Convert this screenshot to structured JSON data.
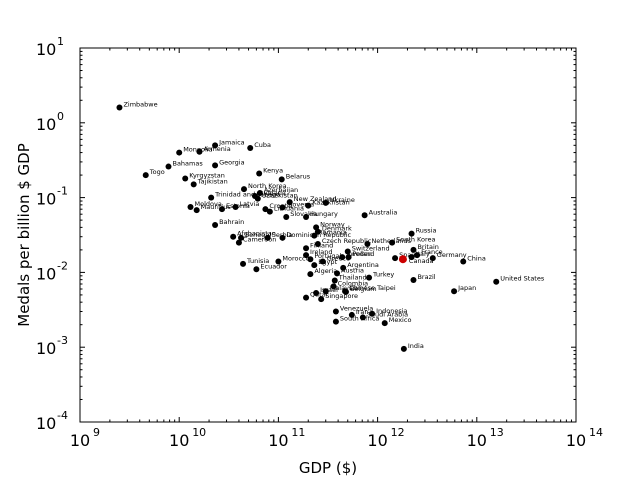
{
  "chart_data": {
    "type": "scatter",
    "title": "",
    "xlabel": "GDP ($)",
    "ylabel": "Medals per billion $ GDP",
    "xscale": "log",
    "yscale": "log",
    "xlim": [
      1000000000.0,
      100000000000000.0
    ],
    "ylim": [
      0.0001,
      10
    ],
    "grid": false,
    "x_ticks": [
      {
        "base": "10",
        "exp": "9"
      },
      {
        "base": "10",
        "exp": "10"
      },
      {
        "base": "10",
        "exp": "11"
      },
      {
        "base": "10",
        "exp": "12"
      },
      {
        "base": "10",
        "exp": "13"
      },
      {
        "base": "10",
        "exp": "14"
      }
    ],
    "y_ticks": [
      {
        "base": "10",
        "exp": "-4"
      },
      {
        "base": "10",
        "exp": "-3"
      },
      {
        "base": "10",
        "exp": "-2"
      },
      {
        "base": "10",
        "exp": "-1"
      },
      {
        "base": "10",
        "exp": "0"
      },
      {
        "base": "10",
        "exp": "1"
      }
    ],
    "point_color": "#000000",
    "highlight_color": "#cc0000",
    "highlight_label": "Canada",
    "points": [
      {
        "label": "Zimbabwe",
        "x": 2500000000.0,
        "y": 1.6
      },
      {
        "label": "Jamaica",
        "x": 23000000000.0,
        "y": 0.5
      },
      {
        "label": "Mongolia",
        "x": 10000000000.0,
        "y": 0.4
      },
      {
        "label": "Armenia",
        "x": 16000000000.0,
        "y": 0.41
      },
      {
        "label": "Cuba",
        "x": 52000000000.0,
        "y": 0.46
      },
      {
        "label": "Georgia",
        "x": 23000000000.0,
        "y": 0.27
      },
      {
        "label": "Bahamas",
        "x": 7800000000.0,
        "y": 0.26
      },
      {
        "label": "Togo",
        "x": 4600000000.0,
        "y": 0.2
      },
      {
        "label": "Kenya",
        "x": 64000000000.0,
        "y": 0.21
      },
      {
        "label": "Kyrgyzstan",
        "x": 11500000000.0,
        "y": 0.18
      },
      {
        "label": "Tajikistan",
        "x": 14000000000.0,
        "y": 0.15
      },
      {
        "label": "Belarus",
        "x": 108000000000.0,
        "y": 0.175
      },
      {
        "label": "North Korea",
        "x": 45000000000.0,
        "y": 0.13
      },
      {
        "label": "Azerbaijan",
        "x": 65000000000.0,
        "y": 0.115
      },
      {
        "label": "Bulgaria",
        "x": 58000000000.0,
        "y": 0.105
      },
      {
        "label": "Uzbekistan",
        "x": 62000000000.0,
        "y": 0.097
      },
      {
        "label": "Trinidad and Tobago",
        "x": 21000000000.0,
        "y": 0.1
      },
      {
        "label": "Ukraine",
        "x": 300000000000.0,
        "y": 0.085
      },
      {
        "label": "Kazakhstan",
        "x": 200000000000.0,
        "y": 0.078
      },
      {
        "label": "New Zealand",
        "x": 130000000000.0,
        "y": 0.087
      },
      {
        "label": "Slovenia",
        "x": 110000000000.0,
        "y": 0.074
      },
      {
        "label": "Moldova",
        "x": 13000000000.0,
        "y": 0.075
      },
      {
        "label": "Latvia",
        "x": 37000000000.0,
        "y": 0.075
      },
      {
        "label": "Croatia",
        "x": 74000000000.0,
        "y": 0.07
      },
      {
        "label": "Estonia",
        "x": 27000000000.0,
        "y": 0.07
      },
      {
        "label": "Mauritius",
        "x": 15000000000.0,
        "y": 0.068
      },
      {
        "label": "Lithuania",
        "x": 82000000000.0,
        "y": 0.065
      },
      {
        "label": "Slovakia",
        "x": 120000000000.0,
        "y": 0.055
      },
      {
        "label": "Hungary",
        "x": 190000000000.0,
        "y": 0.055
      },
      {
        "label": "Australia",
        "x": 740000000000.0,
        "y": 0.058
      },
      {
        "label": "Bahrain",
        "x": 23000000000.0,
        "y": 0.043
      },
      {
        "label": "Norway",
        "x": 240000000000.0,
        "y": 0.04
      },
      {
        "label": "Denmark",
        "x": 250000000000.0,
        "y": 0.035
      },
      {
        "label": "Romania",
        "x": 230000000000.0,
        "y": 0.031
      },
      {
        "label": "Dominican Republic",
        "x": 110000000000.0,
        "y": 0.029
      },
      {
        "label": "Afghanistan",
        "x": 35000000000.0,
        "y": 0.03
      },
      {
        "label": "Serbia",
        "x": 78000000000.0,
        "y": 0.029
      },
      {
        "label": "Senegal",
        "x": 42000000000.0,
        "y": 0.029
      },
      {
        "label": "Cameroon",
        "x": 40000000000.0,
        "y": 0.025
      },
      {
        "label": "Russia",
        "x": 2200000000000.0,
        "y": 0.033
      },
      {
        "label": "Czech Republic",
        "x": 250000000000.0,
        "y": 0.024
      },
      {
        "label": "Netherlands",
        "x": 790000000000.0,
        "y": 0.024
      },
      {
        "label": "South Korea",
        "x": 1400000000000.0,
        "y": 0.025
      },
      {
        "label": "Britain",
        "x": 2300000000000.0,
        "y": 0.02
      },
      {
        "label": "France",
        "x": 2500000000000.0,
        "y": 0.017
      },
      {
        "label": "Finland",
        "x": 190000000000.0,
        "y": 0.021
      },
      {
        "label": "Ireland",
        "x": 190000000000.0,
        "y": 0.017
      },
      {
        "label": "Switzerland",
        "x": 500000000000.0,
        "y": 0.019
      },
      {
        "label": "Poland",
        "x": 510000000000.0,
        "y": 0.016
      },
      {
        "label": "Sweden",
        "x": 440000000000.0,
        "y": 0.016
      },
      {
        "label": "Portugal",
        "x": 210000000000.0,
        "y": 0.015
      },
      {
        "label": "Greece",
        "x": 280000000000.0,
        "y": 0.014
      },
      {
        "label": "Morocco",
        "x": 100000000000.0,
        "y": 0.014
      },
      {
        "label": "Tunisia",
        "x": 44000000000.0,
        "y": 0.013
      },
      {
        "label": "Egypt",
        "x": 230000000000.0,
        "y": 0.0125
      },
      {
        "label": "Argentina",
        "x": 450000000000.0,
        "y": 0.0115
      },
      {
        "label": "Ecuador",
        "x": 60000000000.0,
        "y": 0.011
      },
      {
        "label": "Germany",
        "x": 3600000000000.0,
        "y": 0.0155
      },
      {
        "label": "Italy",
        "x": 2200000000000.0,
        "y": 0.016
      },
      {
        "label": "Spain",
        "x": 1500000000000.0,
        "y": 0.0155
      },
      {
        "label": "China",
        "x": 7300000000000.0,
        "y": 0.014
      },
      {
        "label": "Canada",
        "x": 1800000000000.0,
        "y": 0.015
      },
      {
        "label": "Algeria",
        "x": 210000000000.0,
        "y": 0.0095
      },
      {
        "label": "Austria",
        "x": 390000000000.0,
        "y": 0.0097
      },
      {
        "label": "Turkey",
        "x": 820000000000.0,
        "y": 0.0085
      },
      {
        "label": "Brazil",
        "x": 2300000000000.0,
        "y": 0.0079
      },
      {
        "label": "Thailand",
        "x": 370000000000.0,
        "y": 0.0078
      },
      {
        "label": "Colombia",
        "x": 360000000000.0,
        "y": 0.0065
      },
      {
        "label": "Belgium",
        "x": 480000000000.0,
        "y": 0.0055
      },
      {
        "label": "Chinese Taipei",
        "x": 470000000000.0,
        "y": 0.0056
      },
      {
        "label": "Malaysia",
        "x": 300000000000.0,
        "y": 0.0056
      },
      {
        "label": "Israel",
        "x": 240000000000.0,
        "y": 0.0053
      },
      {
        "label": "Japan",
        "x": 5900000000000.0,
        "y": 0.0056
      },
      {
        "label": "United States",
        "x": 15700000000000.0,
        "y": 0.0075
      },
      {
        "label": "Qatar",
        "x": 190000000000.0,
        "y": 0.0046
      },
      {
        "label": "Singapore",
        "x": 270000000000.0,
        "y": 0.0044
      },
      {
        "label": "Venezuela",
        "x": 380000000000.0,
        "y": 0.003
      },
      {
        "label": "Indonesia",
        "x": 880000000000.0,
        "y": 0.0028
      },
      {
        "label": "Iran",
        "x": 550000000000.0,
        "y": 0.0027
      },
      {
        "label": "Saudi Arabia",
        "x": 710000000000.0,
        "y": 0.0025
      },
      {
        "label": "South Africa",
        "x": 380000000000.0,
        "y": 0.0022
      },
      {
        "label": "Mexico",
        "x": 1180000000000.0,
        "y": 0.0021
      },
      {
        "label": "India",
        "x": 1840000000000.0,
        "y": 0.00095
      }
    ]
  }
}
